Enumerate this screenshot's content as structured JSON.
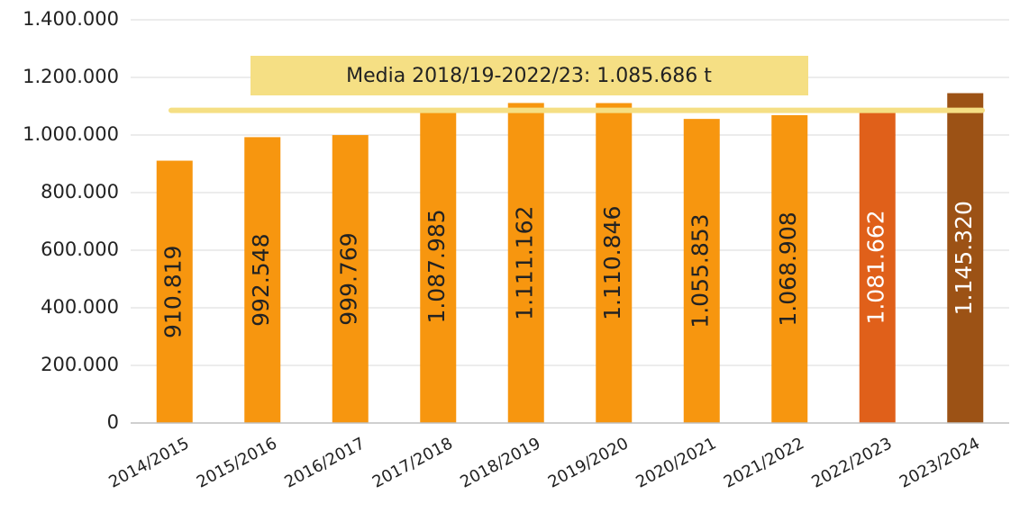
{
  "chart_data": {
    "type": "bar",
    "categories": [
      "2014/2015",
      "2015/2016",
      "2016/2017",
      "2017/2018",
      "2018/2019",
      "2019/2020",
      "2020/2021",
      "2021/2022",
      "2022/2023",
      "2023/2024"
    ],
    "values": [
      910819,
      992548,
      999769,
      1087985,
      1111162,
      1110846,
      1055853,
      1068908,
      1081662,
      1145320
    ],
    "value_labels": [
      "910.819",
      "992.548",
      "999.769",
      "1.087.985",
      "1.111.162",
      "1.110.846",
      "1.055.853",
      "1.068.908",
      "1.081.662",
      "1.145.320"
    ],
    "colors": [
      "#f7960f",
      "#f7960f",
      "#f7960f",
      "#f7960f",
      "#f7960f",
      "#f7960f",
      "#f7960f",
      "#f7960f",
      "#e0601a",
      "#9c5215"
    ],
    "value_label_colors": [
      "#222222",
      "#222222",
      "#222222",
      "#222222",
      "#222222",
      "#222222",
      "#222222",
      "#222222",
      "#ffffff",
      "#ffffff"
    ],
    "ylim": [
      0,
      1400000
    ],
    "yticks": [
      0,
      {
        "value": 200000,
        "label": "200.000"
      },
      {
        "value": 400000,
        "label": "400.000"
      },
      {
        "value": 600000,
        "label": "600.000"
      },
      {
        "value": 800000,
        "label": "800.000"
      },
      {
        "value": 1000000,
        "label": "1.000.000"
      },
      {
        "value": 1200000,
        "label": "1.200.000"
      },
      {
        "value": 1400000,
        "label": "1.400.000"
      }
    ],
    "grid": true,
    "mean_line": {
      "value": 1085686,
      "label": "Media 2018/19-2022/23: 1.085.686 t",
      "color": "#f5df84"
    }
  }
}
